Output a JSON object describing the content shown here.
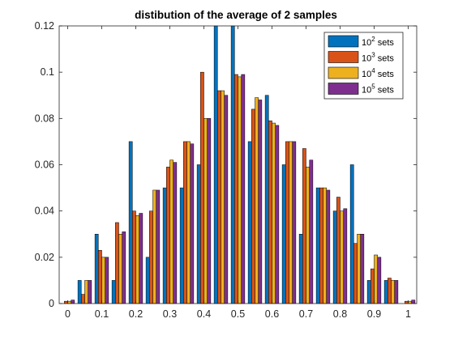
{
  "chart_data": {
    "type": "bar",
    "title": "distibution of the average of 2 samples",
    "xlabel": "",
    "ylabel": "",
    "xlim": [
      -0.025,
      1.025
    ],
    "ylim": [
      0,
      0.12
    ],
    "xticks": [
      0,
      0.1,
      0.2,
      0.3,
      0.4,
      0.5,
      0.6,
      0.7,
      0.8,
      0.9,
      1
    ],
    "xtick_labels": [
      "0",
      "0.1",
      "0.2",
      "0.3",
      "0.4",
      "0.5",
      "0.6",
      "0.7",
      "0.8",
      "0.9",
      "1"
    ],
    "yticks": [
      0,
      0.02,
      0.04,
      0.06,
      0.08,
      0.1,
      0.12
    ],
    "ytick_labels": [
      "0",
      "0.02",
      "0.04",
      "0.06",
      "0.08",
      "0.1",
      "0.12"
    ],
    "grid": false,
    "legend_position": "top-right",
    "categories": [
      0,
      0.05,
      0.1,
      0.15,
      0.2,
      0.25,
      0.3,
      0.35,
      0.4,
      0.45,
      0.5,
      0.55,
      0.6,
      0.65,
      0.7,
      0.75,
      0.8,
      0.85,
      0.9,
      0.95,
      1.0
    ],
    "series": [
      {
        "name": "sets",
        "base": "10",
        "exponent": "2",
        "color": "#0072BD",
        "values": [
          0,
          0.01,
          0.03,
          0.01,
          0.07,
          0.02,
          0.05,
          0.05,
          0.06,
          0.12,
          0.12,
          0.07,
          0.09,
          0.06,
          0.03,
          0.05,
          0.04,
          0.06,
          0.01,
          0.01,
          0
        ]
      },
      {
        "name": "sets",
        "base": "10",
        "exponent": "3",
        "color": "#D95319",
        "values": [
          0.001,
          0.004,
          0.023,
          0.035,
          0.04,
          0.04,
          0.059,
          0.07,
          0.1,
          0.092,
          0.099,
          0.084,
          0.079,
          0.07,
          0.067,
          0.05,
          0.046,
          0.026,
          0.015,
          0.011,
          0.001
        ]
      },
      {
        "name": "sets",
        "base": "10",
        "exponent": "4",
        "color": "#EDB120",
        "values": [
          0.001,
          0.01,
          0.02,
          0.03,
          0.038,
          0.049,
          0.062,
          0.07,
          0.08,
          0.092,
          0.098,
          0.089,
          0.078,
          0.07,
          0.059,
          0.05,
          0.04,
          0.03,
          0.021,
          0.01,
          0.001
        ]
      },
      {
        "name": "sets",
        "base": "10",
        "exponent": "5",
        "color": "#7E2F8E",
        "values": [
          0.0015,
          0.01,
          0.02,
          0.031,
          0.039,
          0.049,
          0.061,
          0.069,
          0.08,
          0.09,
          0.099,
          0.088,
          0.077,
          0.07,
          0.062,
          0.049,
          0.041,
          0.03,
          0.02,
          0.01,
          0.0015
        ]
      }
    ]
  }
}
